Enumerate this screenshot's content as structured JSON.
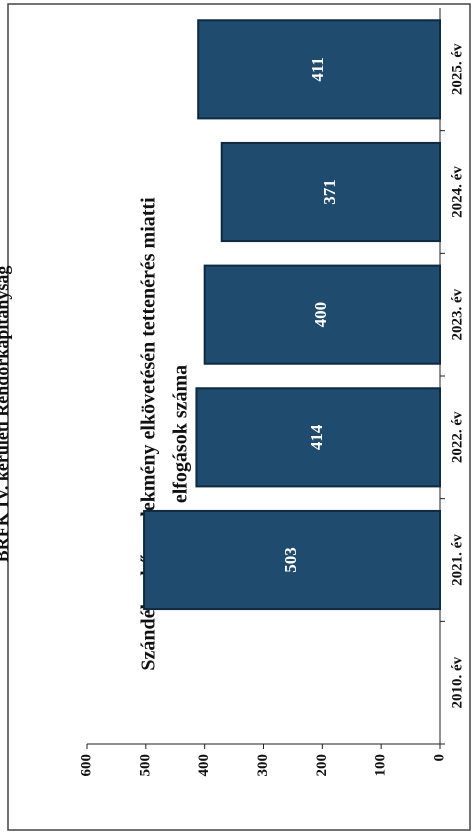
{
  "chart_data": {
    "type": "bar",
    "header": "BRFK IV. kerületi Rendőrkapitányság",
    "title": "Szándékos bűncselekmény elkövetésén tettenérés miatti",
    "subtitle": "elfogások száma",
    "categories": [
      "2010. év",
      "2021. év",
      "2022. év",
      "2023. év",
      "2024. év",
      "2025. év"
    ],
    "values": [
      null,
      503,
      414,
      400,
      371,
      411
    ],
    "color": "#1f4b6e",
    "ylim": [
      0,
      600
    ],
    "yticks": [
      0,
      100,
      200,
      300,
      400,
      500,
      600
    ],
    "grid": false
  }
}
